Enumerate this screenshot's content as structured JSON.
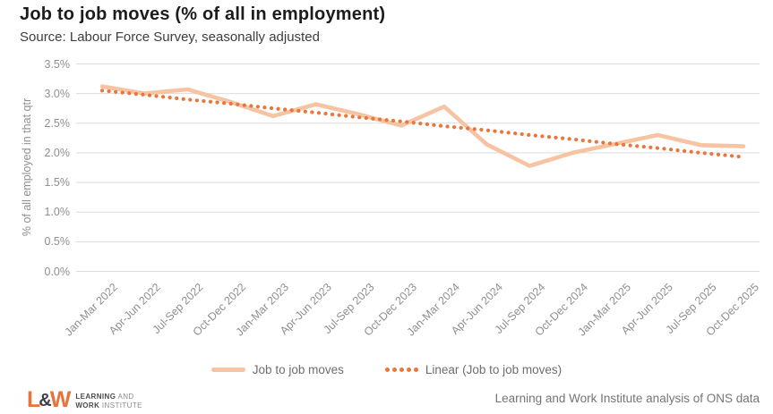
{
  "header": {
    "title": "Job to job moves (% of all in employment)",
    "subtitle": "Source: Labour Force Survey, seasonally adjusted"
  },
  "chart_data": {
    "type": "line",
    "title": "Job to job moves (% of all in employment)",
    "xlabel": "",
    "ylabel": "% of all employed in that qtr",
    "ylim": [
      0,
      3.5
    ],
    "ytick_step": 0.5,
    "ytick_labels": [
      "0.0%",
      "0.5%",
      "1.0%",
      "1.5%",
      "2.0%",
      "2.5%",
      "3.0%",
      "3.5%"
    ],
    "grid": true,
    "legend_position": "bottom",
    "categories": [
      "Jan-Mar 2022",
      "Apr-Jun 2022",
      "Jul-Sep 2022",
      "Oct-Dec 2022",
      "Jan-Mar 2023",
      "Apr-Jun 2023",
      "Jul-Sep 2023",
      "Oct-Dec 2023",
      "Jan-Mar 2024",
      "Apr-Jun 2024",
      "Jul-Sep 2024",
      "Oct-Dec 2024",
      "Jan-Mar 2025",
      "Apr-Jun 2025",
      "Jul-Sep 2025",
      "Oct-Dec 2025"
    ],
    "series": [
      {
        "name": "Job to job moves",
        "style": "solid",
        "color": "#F6C3A3",
        "values": [
          3.12,
          3.0,
          3.07,
          2.86,
          2.62,
          2.82,
          2.65,
          2.46,
          2.78,
          2.14,
          1.78,
          2.0,
          2.15,
          2.3,
          2.13,
          2.11
        ]
      },
      {
        "name": "Linear (Job to job moves)",
        "style": "dotted",
        "color": "#E8773B",
        "values": [
          3.05,
          2.98,
          2.9,
          2.83,
          2.75,
          2.68,
          2.6,
          2.53,
          2.45,
          2.38,
          2.3,
          2.23,
          2.15,
          2.08,
          2.0,
          1.93
        ]
      }
    ]
  },
  "colors": {
    "solid_line": "#F6C3A3",
    "dotted_line": "#E8773B",
    "gridline": "#dcdcdc",
    "axis_text": "#8f8f8f",
    "logo_orange": "#E8743B"
  },
  "footer": {
    "logo": {
      "mark_l": "L",
      "mark_amp": "&",
      "mark_w": "W",
      "line1_bold": "LEARNING",
      "line1_rest": " AND",
      "line2_bold": "WORK",
      "line2_rest": " INSTITUTE"
    },
    "attribution": "Learning and Work Institute analysis of ONS data"
  }
}
